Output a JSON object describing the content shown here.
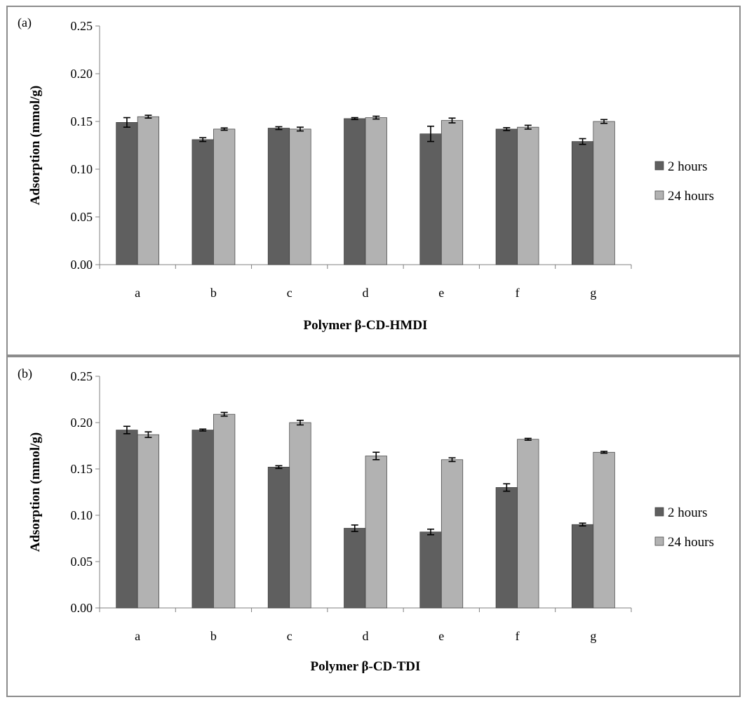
{
  "colors": {
    "series_2h": "#5f5f5f",
    "series_24h": "#b2b2b2",
    "axis": "#7f7f7f",
    "frame": "#8c8c8c"
  },
  "chart_data": [
    {
      "panel_label": "(a)",
      "type": "bar",
      "title": "",
      "xlabel": "Polymer β-CD-HMDI",
      "ylabel": "Adsorption (mmol/g)",
      "ylim": [
        0,
        0.25
      ],
      "yticks": [
        "0.00",
        "0.05",
        "0.10",
        "0.15",
        "0.20",
        "0.25"
      ],
      "grid": false,
      "legend_position": "right",
      "categories": [
        "a",
        "b",
        "c",
        "d",
        "e",
        "f",
        "g"
      ],
      "series": [
        {
          "name": "2 hours",
          "values": [
            0.149,
            0.131,
            0.143,
            0.153,
            0.137,
            0.142,
            0.129
          ],
          "errors": [
            0.005,
            0.002,
            0.0015,
            0.001,
            0.008,
            0.0015,
            0.003
          ]
        },
        {
          "name": "24 hours",
          "values": [
            0.155,
            0.142,
            0.142,
            0.154,
            0.151,
            0.144,
            0.15
          ],
          "errors": [
            0.0015,
            0.0012,
            0.002,
            0.0015,
            0.0025,
            0.002,
            0.002
          ]
        }
      ]
    },
    {
      "panel_label": "(b)",
      "type": "bar",
      "title": "",
      "xlabel": "Polymer β-CD-TDI",
      "ylabel": "Adsorption (mmol/g)",
      "ylim": [
        0,
        0.25
      ],
      "yticks": [
        "0.00",
        "0.05",
        "0.10",
        "0.15",
        "0.20",
        "0.25"
      ],
      "grid": false,
      "legend_position": "right",
      "categories": [
        "a",
        "b",
        "c",
        "d",
        "e",
        "f",
        "g"
      ],
      "series": [
        {
          "name": "2 hours",
          "values": [
            0.192,
            0.192,
            0.152,
            0.086,
            0.082,
            0.13,
            0.09
          ],
          "errors": [
            0.004,
            0.001,
            0.0015,
            0.0035,
            0.003,
            0.004,
            0.0015
          ]
        },
        {
          "name": "24 hours",
          "values": [
            0.187,
            0.209,
            0.2,
            0.164,
            0.16,
            0.182,
            0.168
          ],
          "errors": [
            0.003,
            0.002,
            0.0025,
            0.004,
            0.002,
            0.001,
            0.001
          ]
        }
      ]
    }
  ]
}
